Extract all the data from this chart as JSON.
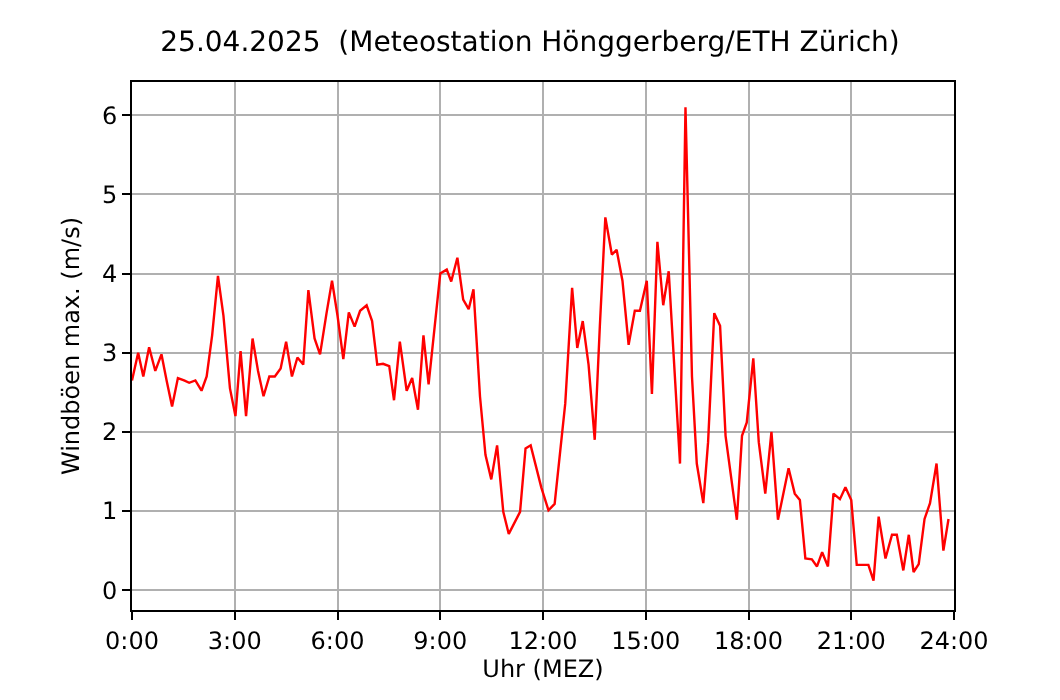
{
  "chart_data": {
    "type": "line",
    "title": "25.04.2025  (Meteostation Hönggerberg/ETH Zürich)",
    "xlabel": "Uhr (MEZ)",
    "ylabel": "Windböen max. (m/s)",
    "x": [
      0.0,
      0.18,
      0.33,
      0.5,
      0.68,
      0.86,
      1.01,
      1.17,
      1.34,
      1.52,
      1.67,
      1.85,
      2.03,
      2.18,
      2.34,
      2.51,
      2.67,
      2.86,
      3.02,
      3.17,
      3.33,
      3.52,
      3.68,
      3.84,
      4.01,
      4.17,
      4.34,
      4.5,
      4.67,
      4.83,
      5.0,
      5.15,
      5.33,
      5.49,
      5.68,
      5.84,
      6.0,
      6.17,
      6.33,
      6.5,
      6.66,
      6.85,
      7.01,
      7.16,
      7.33,
      7.51,
      7.65,
      7.82,
      8.02,
      8.18,
      8.35,
      8.51,
      8.66,
      9.0,
      9.19,
      9.32,
      9.5,
      9.67,
      9.83,
      9.97,
      10.16,
      10.32,
      10.49,
      10.66,
      10.84,
      11.0,
      11.33,
      11.49,
      11.64,
      11.95,
      12.16,
      12.34,
      12.65,
      12.85,
      13.0,
      13.16,
      13.33,
      13.51,
      13.66,
      13.82,
      14.01,
      14.15,
      14.32,
      14.5,
      14.68,
      14.83,
      15.03,
      15.18,
      15.34,
      15.51,
      15.67,
      16.0,
      16.16,
      16.35,
      16.49,
      16.68,
      16.82,
      17.0,
      17.17,
      17.33,
      17.66,
      17.81,
      17.95,
      18.14,
      18.3,
      18.49,
      18.67,
      18.86,
      19.17,
      19.35,
      19.5,
      19.66,
      19.85,
      20.0,
      20.15,
      20.32,
      20.48,
      20.67,
      20.83,
      21.0,
      21.16,
      21.5,
      21.65,
      21.8,
      22.0,
      22.19,
      22.33,
      22.52,
      22.68,
      22.82,
      22.97,
      23.14,
      23.3,
      23.49,
      23.69,
      23.84
    ],
    "series": [
      {
        "color": "#ff0000",
        "values": [
          2.65,
          3.0,
          2.7,
          3.07,
          2.77,
          2.98,
          2.65,
          2.32,
          2.68,
          2.65,
          2.62,
          2.65,
          2.52,
          2.7,
          3.22,
          3.97,
          3.47,
          2.55,
          2.2,
          3.02,
          2.2,
          3.18,
          2.77,
          2.45,
          2.7,
          2.7,
          2.8,
          3.14,
          2.7,
          2.94,
          2.85,
          3.79,
          3.18,
          2.98,
          3.5,
          3.91,
          3.47,
          2.92,
          3.51,
          3.33,
          3.53,
          3.6,
          3.4,
          2.85,
          2.86,
          2.83,
          2.4,
          3.14,
          2.52,
          2.68,
          2.28,
          3.22,
          2.6,
          4.0,
          4.05,
          3.9,
          4.2,
          3.67,
          3.55,
          3.8,
          2.45,
          1.71,
          1.4,
          1.83,
          0.99,
          0.71,
          0.99,
          1.79,
          1.83,
          1.3,
          1.01,
          1.09,
          2.36,
          3.82,
          3.06,
          3.4,
          2.85,
          1.9,
          3.34,
          4.71,
          4.24,
          4.3,
          3.91,
          3.1,
          3.53,
          3.53,
          3.91,
          2.48,
          4.4,
          3.6,
          4.03,
          1.6,
          6.1,
          2.7,
          1.6,
          1.1,
          1.87,
          3.5,
          3.34,
          1.95,
          0.89,
          1.95,
          2.12,
          2.93,
          1.87,
          1.22,
          2.0,
          0.89,
          1.54,
          1.22,
          1.14,
          0.4,
          0.39,
          0.3,
          0.48,
          0.3,
          1.22,
          1.15,
          1.3,
          1.14,
          0.32,
          0.32,
          0.12,
          0.93,
          0.4,
          0.7,
          0.7,
          0.25,
          0.7,
          0.23,
          0.33,
          0.9,
          1.1,
          1.6,
          0.5,
          0.9
        ]
      }
    ],
    "xlim": [
      0,
      24
    ],
    "xticks": [
      {
        "value": 0,
        "label": "0:00"
      },
      {
        "value": 3,
        "label": "3:00"
      },
      {
        "value": 6,
        "label": "6:00"
      },
      {
        "value": 9,
        "label": "9:00"
      },
      {
        "value": 12,
        "label": "12:00"
      },
      {
        "value": 15,
        "label": "15:00"
      },
      {
        "value": 18,
        "label": "18:00"
      },
      {
        "value": 21,
        "label": "21:00"
      },
      {
        "value": 24,
        "label": "24:00"
      }
    ],
    "ylim": [
      -0.25,
      6.42
    ],
    "yticks": [
      0,
      1,
      2,
      3,
      4,
      5,
      6
    ],
    "grid": true,
    "line_style": "solid",
    "marker": "none"
  }
}
